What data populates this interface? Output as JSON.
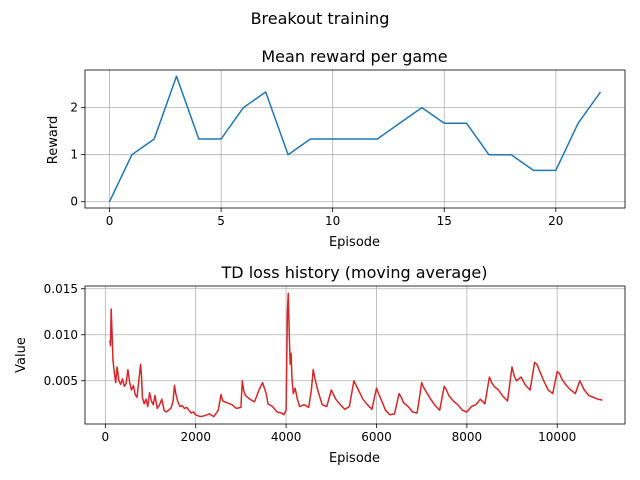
{
  "figure": {
    "title": "Breakout training"
  },
  "chart_data": [
    {
      "type": "line",
      "title": "Mean reward per game",
      "xlabel": "Episode",
      "ylabel": "Reward",
      "xlim": [
        -1.1,
        23.1
      ],
      "ylim": [
        -0.133,
        2.8
      ],
      "xticks": [
        0,
        5,
        10,
        15,
        20
      ],
      "yticks": [
        0,
        1,
        2
      ],
      "grid": true,
      "series": [
        {
          "color": "#1f77b4",
          "x": [
            0,
            1,
            2,
            3,
            4,
            5,
            6,
            7,
            8,
            9,
            10,
            11,
            12,
            13,
            14,
            15,
            16,
            17,
            18,
            19,
            20,
            21,
            22
          ],
          "y": [
            0,
            1,
            1.333,
            2.667,
            1.333,
            1.333,
            2,
            2.333,
            1,
            1.333,
            1.333,
            1.333,
            1.333,
            1.667,
            2,
            1.667,
            1.667,
            1,
            1,
            0.667,
            0.667,
            1.667,
            2.333
          ]
        }
      ]
    },
    {
      "type": "line",
      "title": "TD loss history (moving average)",
      "xlabel": "Episode",
      "ylabel": "Value",
      "xlim": [
        -450,
        11500
      ],
      "ylim": [
        0.0003,
        0.0153
      ],
      "xticks": [
        0,
        2000,
        4000,
        6000,
        8000,
        10000
      ],
      "yticks": [
        0.005,
        0.01,
        0.015
      ],
      "ytick_labels": [
        "0.005",
        "0.010",
        "0.015"
      ],
      "grid": true,
      "series": [
        {
          "color": "#d62728",
          "x": [
            100,
            115,
            130,
            150,
            170,
            200,
            230,
            260,
            300,
            340,
            380,
            420,
            460,
            500,
            540,
            580,
            620,
            660,
            700,
            740,
            780,
            800,
            820,
            860,
            900,
            940,
            980,
            1020,
            1060,
            1100,
            1150,
            1200,
            1250,
            1300,
            1350,
            1400,
            1450,
            1500,
            1530,
            1560,
            1600,
            1650,
            1700,
            1750,
            1800,
            1850,
            1900,
            1950,
            2000,
            2100,
            2200,
            2300,
            2400,
            2500,
            2560,
            2600,
            2700,
            2800,
            2900,
            3000,
            3030,
            3060,
            3100,
            3200,
            3300,
            3400,
            3480,
            3520,
            3560,
            3600,
            3700,
            3800,
            3900,
            3950,
            4000,
            4030,
            4050,
            4070,
            4090,
            4110,
            4130,
            4160,
            4200,
            4250,
            4300,
            4400,
            4500,
            4560,
            4600,
            4640,
            4700,
            4800,
            4900,
            5000,
            5100,
            5200,
            5300,
            5400,
            5500,
            5600,
            5700,
            5800,
            5900,
            6000,
            6030,
            6100,
            6200,
            6300,
            6400,
            6500,
            6550,
            6600,
            6700,
            6800,
            6900,
            7000,
            7030,
            7100,
            7200,
            7300,
            7400,
            7500,
            7550,
            7600,
            7700,
            7800,
            7900,
            8000,
            8100,
            8200,
            8300,
            8400,
            8500,
            8550,
            8600,
            8700,
            8800,
            8900,
            9000,
            9050,
            9100,
            9200,
            9300,
            9400,
            9500,
            9550,
            9600,
            9700,
            9800,
            9900,
            10000,
            10050,
            10100,
            10200,
            10300,
            10400,
            10500,
            10600,
            10700,
            10800,
            10900,
            11000
          ],
          "y": [
            0.0094,
            0.0088,
            0.0128,
            0.01,
            0.0072,
            0.0058,
            0.0048,
            0.0065,
            0.005,
            0.0046,
            0.0052,
            0.0044,
            0.0047,
            0.0062,
            0.0048,
            0.004,
            0.0045,
            0.0035,
            0.0032,
            0.005,
            0.0068,
            0.0055,
            0.0032,
            0.0025,
            0.003,
            0.0022,
            0.0037,
            0.0028,
            0.0024,
            0.0034,
            0.002,
            0.0024,
            0.003,
            0.0018,
            0.0016,
            0.0018,
            0.002,
            0.0028,
            0.0045,
            0.0036,
            0.0028,
            0.0022,
            0.0023,
            0.002,
            0.0021,
            0.0018,
            0.0015,
            0.0016,
            0.0013,
            0.0011,
            0.0012,
            0.0014,
            0.0011,
            0.0018,
            0.0035,
            0.0028,
            0.0026,
            0.0024,
            0.002,
            0.0021,
            0.005,
            0.004,
            0.0034,
            0.003,
            0.0027,
            0.004,
            0.0048,
            0.0042,
            0.0036,
            0.0025,
            0.0022,
            0.0016,
            0.0015,
            0.0013,
            0.0018,
            0.0125,
            0.0145,
            0.0098,
            0.0068,
            0.008,
            0.0052,
            0.0036,
            0.0042,
            0.003,
            0.0022,
            0.0024,
            0.0021,
            0.004,
            0.0062,
            0.0052,
            0.004,
            0.0024,
            0.0022,
            0.004,
            0.003,
            0.0024,
            0.0019,
            0.0022,
            0.005,
            0.004,
            0.003,
            0.0024,
            0.0019,
            0.0042,
            0.0038,
            0.003,
            0.0018,
            0.0013,
            0.0014,
            0.0036,
            0.0032,
            0.0026,
            0.0022,
            0.0016,
            0.0015,
            0.0048,
            0.0044,
            0.0038,
            0.003,
            0.0023,
            0.0018,
            0.0044,
            0.004,
            0.0034,
            0.0028,
            0.0024,
            0.0018,
            0.0016,
            0.0022,
            0.0024,
            0.003,
            0.0025,
            0.0054,
            0.0048,
            0.0044,
            0.004,
            0.0033,
            0.0028,
            0.0065,
            0.0055,
            0.005,
            0.0054,
            0.0045,
            0.004,
            0.007,
            0.0068,
            0.0062,
            0.005,
            0.004,
            0.0036,
            0.006,
            0.0058,
            0.0052,
            0.0045,
            0.004,
            0.0036,
            0.005,
            0.004,
            0.0034,
            0.0032,
            0.003,
            0.0029
          ]
        }
      ]
    }
  ]
}
